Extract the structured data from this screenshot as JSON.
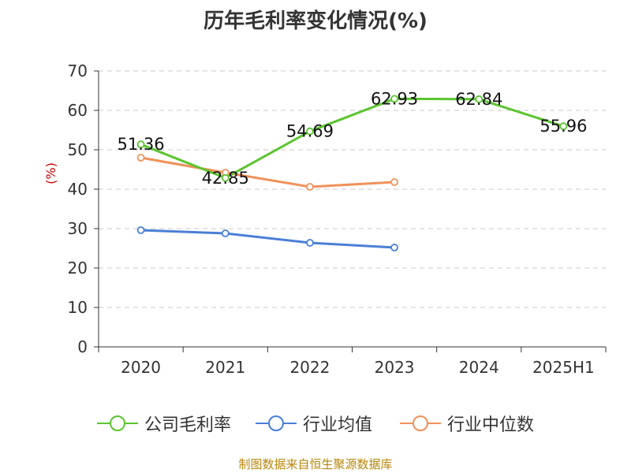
{
  "title": "历年毛利率变化情况(%)",
  "source": "制图数据来自恒生聚源数据库",
  "chart_data": {
    "type": "line",
    "title": "历年毛利率变化情况(%)",
    "ylabel": "(%)",
    "ylim": [
      0,
      70
    ],
    "yticks": [
      0,
      10,
      20,
      30,
      40,
      50,
      60,
      70
    ],
    "categories": [
      "2020",
      "2021",
      "2022",
      "2023",
      "2024",
      "2025H1"
    ],
    "grid": true,
    "legend_position": "bottom",
    "series": [
      {
        "name": "公司毛利率",
        "color": "#5cc430",
        "values": [
          51.36,
          42.85,
          54.69,
          62.93,
          62.84,
          55.96
        ],
        "labels": [
          "51.36",
          "42.85",
          "54.69",
          "62.93",
          "62.84",
          "55.96"
        ]
      },
      {
        "name": "行业均值",
        "color": "#4a7fd6",
        "values": [
          29.6,
          28.8,
          26.4,
          25.2,
          null,
          null
        ]
      },
      {
        "name": "行业中位数",
        "color": "#f0915a",
        "values": [
          48.0,
          44.2,
          40.6,
          41.8,
          null,
          null
        ]
      }
    ]
  },
  "colors": {
    "axis": "#333333",
    "ylabel": "#cc0000",
    "grid": "#c8c8c8"
  }
}
